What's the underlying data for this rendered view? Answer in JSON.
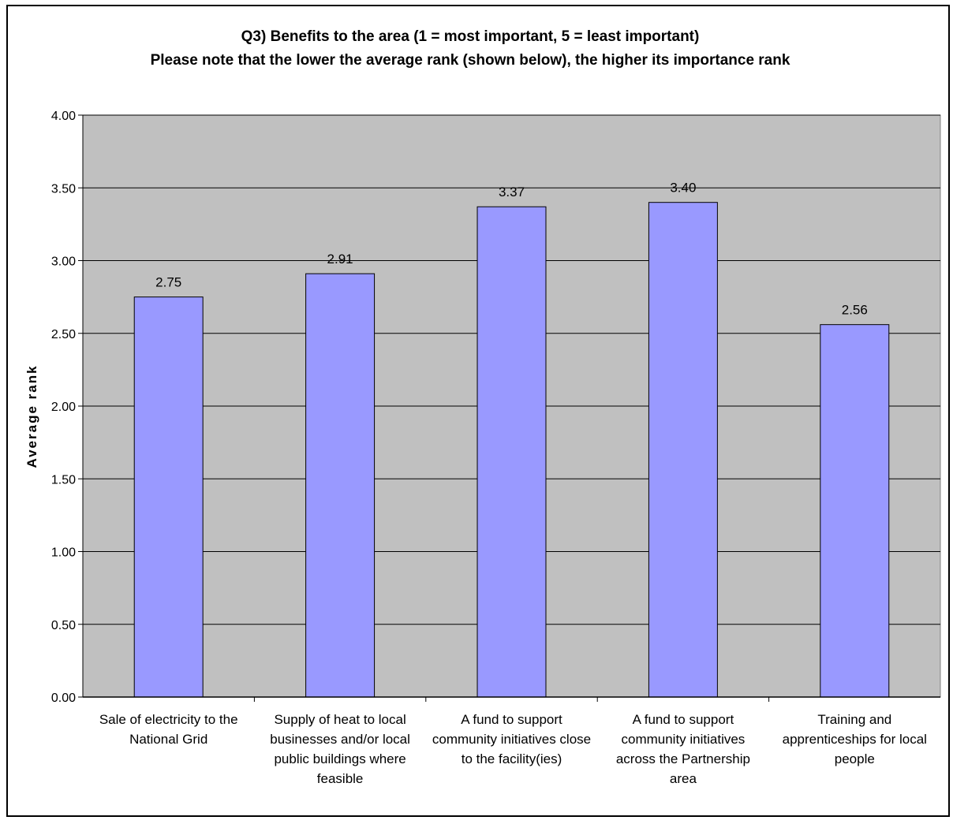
{
  "chart_data": {
    "type": "bar",
    "title": [
      "Q3) Benefits to the area (1 = most important, 5 = least important)",
      "Please note that the lower the average rank (shown below), the higher its importance rank"
    ],
    "ylabel": "Average rank",
    "xlabel": "",
    "ylim": [
      0,
      4
    ],
    "yticks": [
      "0.00",
      "0.50",
      "1.00",
      "1.50",
      "2.00",
      "2.50",
      "3.00",
      "3.50",
      "4.00"
    ],
    "grid": true,
    "categories": [
      [
        "Sale of electricity to the",
        "National Grid"
      ],
      [
        "Supply of heat to local",
        "businesses and/or local",
        "public buildings where",
        "feasible"
      ],
      [
        "A fund to support",
        "community initiatives close",
        "to the facility(ies)"
      ],
      [
        "A fund to support",
        "community initiatives",
        "across the Partnership",
        "area"
      ],
      [
        "Training and",
        "apprenticeships for local",
        "people"
      ]
    ],
    "values": [
      2.75,
      2.91,
      3.37,
      3.4,
      2.56
    ],
    "data_labels": [
      "2.75",
      "2.91",
      "3.37",
      "3.40",
      "2.56"
    ],
    "colors": {
      "bar": "#9999ff",
      "plot_bg": "#c0c0c0",
      "grid": "#000000"
    }
  }
}
